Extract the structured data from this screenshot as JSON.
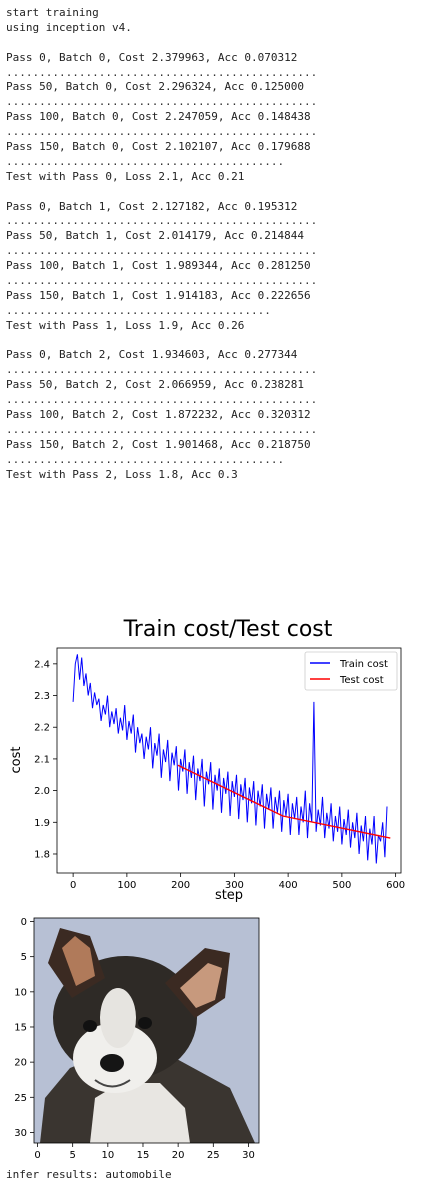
{
  "output": {
    "lines": [
      "start training",
      "using inception v4.",
      "",
      "Pass 0, Batch 0, Cost 2.379963, Acc 0.070312",
      "...............................................",
      "Pass 50, Batch 0, Cost 2.296324, Acc 0.125000",
      "...............................................",
      "Pass 100, Batch 0, Cost 2.247059, Acc 0.148438",
      "...............................................",
      "Pass 150, Batch 0, Cost 2.102107, Acc 0.179688",
      "..........................................",
      "Test with Pass 0, Loss 2.1, Acc 0.21",
      "",
      "Pass 0, Batch 1, Cost 2.127182, Acc 0.195312",
      "...............................................",
      "Pass 50, Batch 1, Cost 2.014179, Acc 0.214844",
      "...............................................",
      "Pass 100, Batch 1, Cost 1.989344, Acc 0.281250",
      "...............................................",
      "Pass 150, Batch 1, Cost 1.914183, Acc 0.222656",
      "........................................",
      "Test with Pass 1, Loss 1.9, Acc 0.26",
      "",
      "Pass 0, Batch 2, Cost 1.934603, Acc 0.277344",
      "...............................................",
      "Pass 50, Batch 2, Cost 2.066959, Acc 0.238281",
      "...............................................",
      "Pass 100, Batch 2, Cost 1.872232, Acc 0.320312",
      "...............................................",
      "Pass 150, Batch 2, Cost 1.901468, Acc 0.218750",
      "..........................................",
      "Test with Pass 2, Loss 1.8, Acc 0.3"
    ],
    "infer_text": "infer results: automobile"
  },
  "chart_data": {
    "type": "line",
    "title": "Train cost/Test cost",
    "xlabel": "step",
    "ylabel": "cost",
    "xlim": [
      -30,
      610
    ],
    "ylim": [
      1.74,
      2.45
    ],
    "x_ticks": [
      0,
      100,
      200,
      300,
      400,
      500,
      600
    ],
    "y_ticks": [
      1.8,
      1.9,
      2.0,
      2.1,
      2.2,
      2.3,
      2.4
    ],
    "legend": "top-right",
    "series": [
      {
        "name": "Train cost",
        "color": "#0000ff",
        "x_start": 0,
        "x_step": 4,
        "values": [
          2.28,
          2.4,
          2.43,
          2.35,
          2.42,
          2.33,
          2.37,
          2.3,
          2.34,
          2.26,
          2.31,
          2.27,
          2.29,
          2.22,
          2.27,
          2.24,
          2.3,
          2.2,
          2.25,
          2.21,
          2.26,
          2.18,
          2.23,
          2.19,
          2.27,
          2.16,
          2.22,
          2.18,
          2.24,
          2.12,
          2.2,
          2.15,
          2.18,
          2.1,
          2.17,
          2.13,
          2.2,
          2.07,
          2.15,
          2.11,
          2.18,
          2.04,
          2.13,
          2.09,
          2.16,
          2.03,
          2.12,
          2.08,
          2.14,
          2.0,
          2.1,
          2.06,
          2.13,
          1.99,
          2.09,
          2.04,
          2.11,
          1.97,
          2.07,
          2.03,
          2.1,
          1.95,
          2.06,
          2.02,
          2.09,
          1.94,
          2.05,
          2.0,
          2.07,
          1.93,
          2.04,
          1.99,
          2.06,
          1.92,
          2.03,
          1.98,
          2.05,
          1.91,
          2.02,
          1.97,
          2.04,
          1.9,
          2.01,
          1.96,
          2.03,
          1.89,
          2.0,
          1.95,
          2.02,
          1.88,
          1.99,
          1.94,
          2.01,
          1.88,
          1.98,
          1.93,
          2.0,
          1.87,
          1.97,
          1.92,
          1.99,
          1.86,
          1.96,
          1.91,
          1.98,
          1.86,
          1.95,
          1.9,
          2.0,
          1.85,
          1.96,
          1.9,
          2.28,
          1.87,
          1.94,
          1.89,
          1.98,
          1.85,
          1.93,
          1.88,
          1.96,
          1.84,
          1.92,
          1.87,
          1.95,
          1.83,
          1.91,
          1.86,
          1.94,
          1.82,
          1.9,
          1.85,
          1.93,
          1.8,
          1.89,
          1.84,
          1.92,
          1.78,
          1.88,
          1.83,
          1.92,
          1.77,
          1.86,
          1.84,
          1.9,
          1.79,
          1.95
        ]
      },
      {
        "name": "Test cost",
        "color": "#ff0000",
        "x": [
          195,
          390,
          590
        ],
        "values": [
          2.08,
          1.92,
          1.85
        ]
      }
    ]
  },
  "image_plot": {
    "x_ticks": [
      0,
      5,
      10,
      15,
      20,
      25,
      30
    ],
    "y_ticks": [
      0,
      5,
      10,
      15,
      20,
      25,
      30
    ]
  }
}
